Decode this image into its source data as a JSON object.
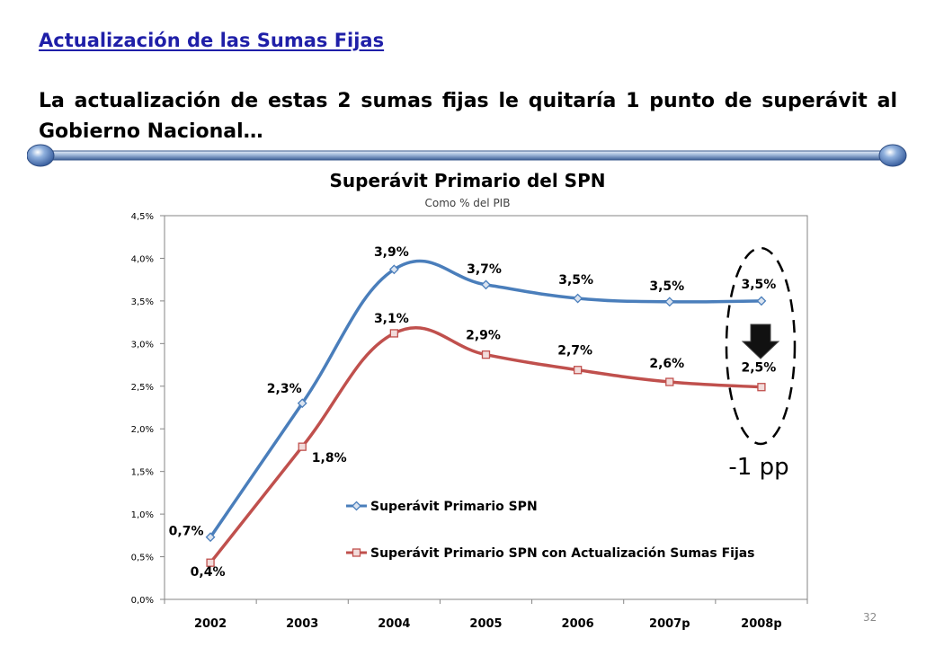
{
  "slide": {
    "title": "Actualización de las Sumas Fijas",
    "subtitle": "La actualización de estas 2 sumas fijas le quitaría 1 punto de superávit al Gobierno Nacional…",
    "page_number": "32"
  },
  "chart_data": {
    "type": "line",
    "title": "Superávit Primario del SPN",
    "subtitle": "Como % del PIB",
    "categories": [
      "2002",
      "2003",
      "2004",
      "2005",
      "2006",
      "2007p",
      "2008p"
    ],
    "y_ticks": [
      "0,0%",
      "0,5%",
      "1,0%",
      "1,5%",
      "2,0%",
      "2,5%",
      "3,0%",
      "3,5%",
      "4,0%",
      "4,5%"
    ],
    "ylim": [
      0,
      4.5
    ],
    "grid": false,
    "legend_position": "lower-right inside plot",
    "series": [
      {
        "name": "Superávit Primario SPN",
        "values": [
          0.73,
          2.3,
          3.87,
          3.69,
          3.53,
          3.49,
          3.5
        ],
        "labels": [
          "0,7%",
          "2,3%",
          "3,9%",
          "3,7%",
          "3,5%",
          "3,5%",
          "3,5%"
        ],
        "color": "#4a7ebb",
        "marker": "diamond"
      },
      {
        "name": "Superávit Primario SPN con Actualización Sumas Fijas",
        "values": [
          0.43,
          1.79,
          3.12,
          2.87,
          2.69,
          2.55,
          2.49
        ],
        "labels": [
          "0,4%",
          "1,8%",
          "3,1%",
          "2,9%",
          "2,7%",
          "2,6%",
          "2,5%"
        ],
        "color": "#c0504d",
        "marker": "square"
      }
    ],
    "annotation": {
      "text": "-1 pp",
      "target_category": "2008p",
      "arrow": "down"
    }
  }
}
